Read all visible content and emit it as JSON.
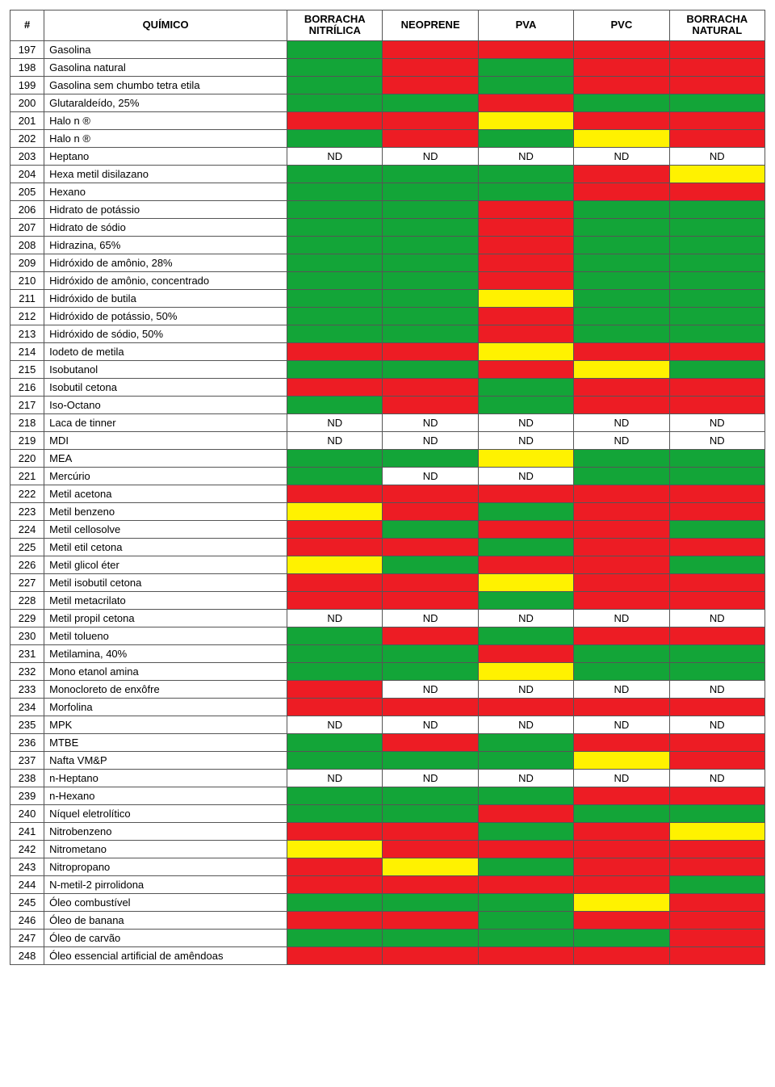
{
  "colors": {
    "green": "#13a538",
    "red": "#ed1c24",
    "yellow": "#fff200",
    "white": "#ffffff"
  },
  "headers": {
    "num": "#",
    "name": "QUÍMICO",
    "materials": [
      "BORRACHA NITRÍLICA",
      "NEOPRENE",
      "PVA",
      "PVC",
      "BORRACHA NATURAL"
    ]
  },
  "rows": [
    {
      "n": 197,
      "name": "Gasolina",
      "cells": [
        {
          "bg": "green"
        },
        {
          "bg": "red"
        },
        {
          "bg": "red"
        },
        {
          "bg": "red"
        },
        {
          "bg": "red"
        }
      ]
    },
    {
      "n": 198,
      "name": "Gasolina natural",
      "cells": [
        {
          "bg": "green"
        },
        {
          "bg": "red"
        },
        {
          "bg": "green"
        },
        {
          "bg": "red"
        },
        {
          "bg": "red"
        }
      ]
    },
    {
      "n": 199,
      "name": "Gasolina sem  chumbo tetra etila",
      "cells": [
        {
          "bg": "green"
        },
        {
          "bg": "red"
        },
        {
          "bg": "green"
        },
        {
          "bg": "red"
        },
        {
          "bg": "red"
        }
      ]
    },
    {
      "n": 200,
      "name": "Glutaraldeído, 25%",
      "cells": [
        {
          "bg": "green"
        },
        {
          "bg": "green"
        },
        {
          "bg": "red"
        },
        {
          "bg": "green"
        },
        {
          "bg": "green"
        }
      ]
    },
    {
      "n": 201,
      "name": "Halo n ®",
      "cells": [
        {
          "bg": "red"
        },
        {
          "bg": "red"
        },
        {
          "bg": "yellow"
        },
        {
          "bg": "red"
        },
        {
          "bg": "red"
        }
      ]
    },
    {
      "n": 202,
      "name": "Halo n ®",
      "cells": [
        {
          "bg": "green"
        },
        {
          "bg": "red"
        },
        {
          "bg": "green"
        },
        {
          "bg": "yellow"
        },
        {
          "bg": "red"
        }
      ]
    },
    {
      "n": 203,
      "name": "Heptano",
      "cells": [
        {
          "bg": "white",
          "t": "ND"
        },
        {
          "bg": "white",
          "t": "ND"
        },
        {
          "bg": "white",
          "t": "ND"
        },
        {
          "bg": "white",
          "t": "ND"
        },
        {
          "bg": "white",
          "t": "ND"
        }
      ]
    },
    {
      "n": 204,
      "name": "Hexa metil disilazano",
      "cells": [
        {
          "bg": "green"
        },
        {
          "bg": "green"
        },
        {
          "bg": "green"
        },
        {
          "bg": "red"
        },
        {
          "bg": "yellow"
        }
      ]
    },
    {
      "n": 205,
      "name": "Hexano",
      "cells": [
        {
          "bg": "green"
        },
        {
          "bg": "green"
        },
        {
          "bg": "green"
        },
        {
          "bg": "red"
        },
        {
          "bg": "red"
        }
      ]
    },
    {
      "n": 206,
      "name": "Hidrato de  potássio",
      "cells": [
        {
          "bg": "green"
        },
        {
          "bg": "green"
        },
        {
          "bg": "red"
        },
        {
          "bg": "green"
        },
        {
          "bg": "green"
        }
      ]
    },
    {
      "n": 207,
      "name": "Hidrato de sódio",
      "cells": [
        {
          "bg": "green"
        },
        {
          "bg": "green"
        },
        {
          "bg": "red"
        },
        {
          "bg": "green"
        },
        {
          "bg": "green"
        }
      ]
    },
    {
      "n": 208,
      "name": "Hidrazina, 65%",
      "cells": [
        {
          "bg": "green"
        },
        {
          "bg": "green"
        },
        {
          "bg": "red"
        },
        {
          "bg": "green"
        },
        {
          "bg": "green"
        }
      ]
    },
    {
      "n": 209,
      "name": "Hidróxido de amônio,  28%",
      "cells": [
        {
          "bg": "green"
        },
        {
          "bg": "green"
        },
        {
          "bg": "red"
        },
        {
          "bg": "green"
        },
        {
          "bg": "green"
        }
      ]
    },
    {
      "n": 210,
      "name": "Hidróxido de amônio,  concentrado",
      "cells": [
        {
          "bg": "green"
        },
        {
          "bg": "green"
        },
        {
          "bg": "red"
        },
        {
          "bg": "green"
        },
        {
          "bg": "green"
        }
      ]
    },
    {
      "n": 211,
      "name": "Hidróxido de butila",
      "cells": [
        {
          "bg": "green"
        },
        {
          "bg": "green"
        },
        {
          "bg": "yellow"
        },
        {
          "bg": "green"
        },
        {
          "bg": "green"
        }
      ]
    },
    {
      "n": 212,
      "name": "Hidróxido de potássio,   50%",
      "cells": [
        {
          "bg": "green"
        },
        {
          "bg": "green"
        },
        {
          "bg": "red"
        },
        {
          "bg": "green"
        },
        {
          "bg": "green"
        }
      ]
    },
    {
      "n": 213,
      "name": "Hidróxido de sódio,  50%",
      "cells": [
        {
          "bg": "green"
        },
        {
          "bg": "green"
        },
        {
          "bg": "red"
        },
        {
          "bg": "green"
        },
        {
          "bg": "green"
        }
      ]
    },
    {
      "n": 214,
      "name": "Iodeto de metila",
      "cells": [
        {
          "bg": "red"
        },
        {
          "bg": "red"
        },
        {
          "bg": "yellow"
        },
        {
          "bg": "red"
        },
        {
          "bg": "red"
        }
      ]
    },
    {
      "n": 215,
      "name": "Isobutanol",
      "cells": [
        {
          "bg": "green"
        },
        {
          "bg": "green"
        },
        {
          "bg": "red"
        },
        {
          "bg": "yellow"
        },
        {
          "bg": "green"
        }
      ]
    },
    {
      "n": 216,
      "name": "Isobutil  cetona",
      "cells": [
        {
          "bg": "red"
        },
        {
          "bg": "red"
        },
        {
          "bg": "green"
        },
        {
          "bg": "red"
        },
        {
          "bg": "red"
        }
      ]
    },
    {
      "n": 217,
      "name": "Iso-Octano",
      "cells": [
        {
          "bg": "green"
        },
        {
          "bg": "red"
        },
        {
          "bg": "green"
        },
        {
          "bg": "red"
        },
        {
          "bg": "red"
        }
      ]
    },
    {
      "n": 218,
      "name": "Laca de tinner",
      "cells": [
        {
          "bg": "white",
          "t": "ND"
        },
        {
          "bg": "white",
          "t": "ND"
        },
        {
          "bg": "white",
          "t": "ND"
        },
        {
          "bg": "white",
          "t": "ND"
        },
        {
          "bg": "white",
          "t": "ND"
        }
      ]
    },
    {
      "n": 219,
      "name": "MDI",
      "cells": [
        {
          "bg": "white",
          "t": "ND"
        },
        {
          "bg": "white",
          "t": "ND"
        },
        {
          "bg": "white",
          "t": "ND"
        },
        {
          "bg": "white",
          "t": "ND"
        },
        {
          "bg": "white",
          "t": "ND"
        }
      ]
    },
    {
      "n": 220,
      "name": "MEA",
      "cells": [
        {
          "bg": "green"
        },
        {
          "bg": "green"
        },
        {
          "bg": "yellow"
        },
        {
          "bg": "green"
        },
        {
          "bg": "green"
        }
      ]
    },
    {
      "n": 221,
      "name": "Mercúrio",
      "cells": [
        {
          "bg": "green"
        },
        {
          "bg": "white",
          "t": "ND"
        },
        {
          "bg": "white",
          "t": "ND"
        },
        {
          "bg": "green"
        },
        {
          "bg": "green"
        }
      ]
    },
    {
      "n": 222,
      "name": "Metil acetona",
      "cells": [
        {
          "bg": "red"
        },
        {
          "bg": "red"
        },
        {
          "bg": "red"
        },
        {
          "bg": "red"
        },
        {
          "bg": "red"
        }
      ]
    },
    {
      "n": 223,
      "name": "Metil benzeno",
      "cells": [
        {
          "bg": "yellow"
        },
        {
          "bg": "red"
        },
        {
          "bg": "green"
        },
        {
          "bg": "red"
        },
        {
          "bg": "red"
        }
      ]
    },
    {
      "n": 224,
      "name": "Metil cellosolve",
      "cells": [
        {
          "bg": "red"
        },
        {
          "bg": "green"
        },
        {
          "bg": "red"
        },
        {
          "bg": "red"
        },
        {
          "bg": "green"
        }
      ]
    },
    {
      "n": 225,
      "name": "Metil etil cetona",
      "cells": [
        {
          "bg": "red"
        },
        {
          "bg": "red"
        },
        {
          "bg": "green"
        },
        {
          "bg": "red"
        },
        {
          "bg": "red"
        }
      ]
    },
    {
      "n": 226,
      "name": "Metil glicol éter",
      "cells": [
        {
          "bg": "yellow"
        },
        {
          "bg": "green"
        },
        {
          "bg": "red"
        },
        {
          "bg": "red"
        },
        {
          "bg": "green"
        }
      ]
    },
    {
      "n": 227,
      "name": "Metil isobutil cetona",
      "cells": [
        {
          "bg": "red"
        },
        {
          "bg": "red"
        },
        {
          "bg": "yellow"
        },
        {
          "bg": "red"
        },
        {
          "bg": "red"
        }
      ]
    },
    {
      "n": 228,
      "name": "Metil metacrilato",
      "cells": [
        {
          "bg": "red"
        },
        {
          "bg": "red"
        },
        {
          "bg": "green"
        },
        {
          "bg": "red"
        },
        {
          "bg": "red"
        }
      ]
    },
    {
      "n": 229,
      "name": "Metil propil  cetona",
      "cells": [
        {
          "bg": "white",
          "t": "ND"
        },
        {
          "bg": "white",
          "t": "ND"
        },
        {
          "bg": "white",
          "t": "ND"
        },
        {
          "bg": "white",
          "t": "ND"
        },
        {
          "bg": "white",
          "t": "ND"
        }
      ]
    },
    {
      "n": 230,
      "name": "Metil  tolueno",
      "cells": [
        {
          "bg": "green"
        },
        {
          "bg": "red"
        },
        {
          "bg": "green"
        },
        {
          "bg": "red"
        },
        {
          "bg": "red"
        }
      ]
    },
    {
      "n": 231,
      "name": "Metilamina, 40%",
      "cells": [
        {
          "bg": "green"
        },
        {
          "bg": "green"
        },
        {
          "bg": "red"
        },
        {
          "bg": "green"
        },
        {
          "bg": "green"
        }
      ]
    },
    {
      "n": 232,
      "name": "Mono etanol amina",
      "cells": [
        {
          "bg": "green"
        },
        {
          "bg": "green"
        },
        {
          "bg": "yellow"
        },
        {
          "bg": "green"
        },
        {
          "bg": "green"
        }
      ]
    },
    {
      "n": 233,
      "name": "Monocloreto de enxôfre",
      "cells": [
        {
          "bg": "red"
        },
        {
          "bg": "white",
          "t": "ND"
        },
        {
          "bg": "white",
          "t": "ND"
        },
        {
          "bg": "white",
          "t": "ND"
        },
        {
          "bg": "white",
          "t": "ND"
        }
      ]
    },
    {
      "n": 234,
      "name": "Morfolina",
      "cells": [
        {
          "bg": "red"
        },
        {
          "bg": "red"
        },
        {
          "bg": "red"
        },
        {
          "bg": "red"
        },
        {
          "bg": "red"
        }
      ]
    },
    {
      "n": 235,
      "name": "MPK",
      "cells": [
        {
          "bg": "white",
          "t": "ND"
        },
        {
          "bg": "white",
          "t": "ND"
        },
        {
          "bg": "white",
          "t": "ND"
        },
        {
          "bg": "white",
          "t": "ND"
        },
        {
          "bg": "white",
          "t": "ND"
        }
      ]
    },
    {
      "n": 236,
      "name": "MTBE",
      "cells": [
        {
          "bg": "green"
        },
        {
          "bg": "red"
        },
        {
          "bg": "green"
        },
        {
          "bg": "red"
        },
        {
          "bg": "red"
        }
      ]
    },
    {
      "n": 237,
      "name": "Nafta VM&P",
      "cells": [
        {
          "bg": "green"
        },
        {
          "bg": "green"
        },
        {
          "bg": "green"
        },
        {
          "bg": "yellow"
        },
        {
          "bg": "red"
        }
      ]
    },
    {
      "n": 238,
      "name": "n-Heptano",
      "cells": [
        {
          "bg": "white",
          "t": "ND"
        },
        {
          "bg": "white",
          "t": "ND"
        },
        {
          "bg": "white",
          "t": "ND"
        },
        {
          "bg": "white",
          "t": "ND"
        },
        {
          "bg": "white",
          "t": "ND"
        }
      ]
    },
    {
      "n": 239,
      "name": "n-Hexano",
      "cells": [
        {
          "bg": "green"
        },
        {
          "bg": "green"
        },
        {
          "bg": "green"
        },
        {
          "bg": "red"
        },
        {
          "bg": "red"
        }
      ]
    },
    {
      "n": 240,
      "name": "Níquel eletrolítico",
      "cells": [
        {
          "bg": "green"
        },
        {
          "bg": "green"
        },
        {
          "bg": "red"
        },
        {
          "bg": "green"
        },
        {
          "bg": "green"
        }
      ]
    },
    {
      "n": 241,
      "name": "Nitrobenzeno",
      "cells": [
        {
          "bg": "red"
        },
        {
          "bg": "red"
        },
        {
          "bg": "green"
        },
        {
          "bg": "red"
        },
        {
          "bg": "yellow"
        }
      ]
    },
    {
      "n": 242,
      "name": "Nitrometano",
      "cells": [
        {
          "bg": "yellow"
        },
        {
          "bg": "red"
        },
        {
          "bg": "red"
        },
        {
          "bg": "red"
        },
        {
          "bg": "red"
        }
      ]
    },
    {
      "n": 243,
      "name": "Nitropropano",
      "cells": [
        {
          "bg": "red"
        },
        {
          "bg": "yellow"
        },
        {
          "bg": "green"
        },
        {
          "bg": "red"
        },
        {
          "bg": "red"
        }
      ]
    },
    {
      "n": 244,
      "name": "N-metil-2 pirrolidona",
      "cells": [
        {
          "bg": "red"
        },
        {
          "bg": "red"
        },
        {
          "bg": "red"
        },
        {
          "bg": "red"
        },
        {
          "bg": "green"
        }
      ]
    },
    {
      "n": 245,
      "name": "Óleo combustível",
      "cells": [
        {
          "bg": "green"
        },
        {
          "bg": "green"
        },
        {
          "bg": "green"
        },
        {
          "bg": "yellow"
        },
        {
          "bg": "red"
        }
      ]
    },
    {
      "n": 246,
      "name": "Óleo de banana",
      "cells": [
        {
          "bg": "red"
        },
        {
          "bg": "red"
        },
        {
          "bg": "green"
        },
        {
          "bg": "red"
        },
        {
          "bg": "red"
        }
      ]
    },
    {
      "n": 247,
      "name": "Óleo de carvão",
      "cells": [
        {
          "bg": "green"
        },
        {
          "bg": "green"
        },
        {
          "bg": "green"
        },
        {
          "bg": "green"
        },
        {
          "bg": "red"
        }
      ]
    },
    {
      "n": 248,
      "name": "Óleo essencial artificial  de  amêndoas",
      "cells": [
        {
          "bg": "red"
        },
        {
          "bg": "red"
        },
        {
          "bg": "red"
        },
        {
          "bg": "red"
        },
        {
          "bg": "red"
        }
      ]
    }
  ]
}
